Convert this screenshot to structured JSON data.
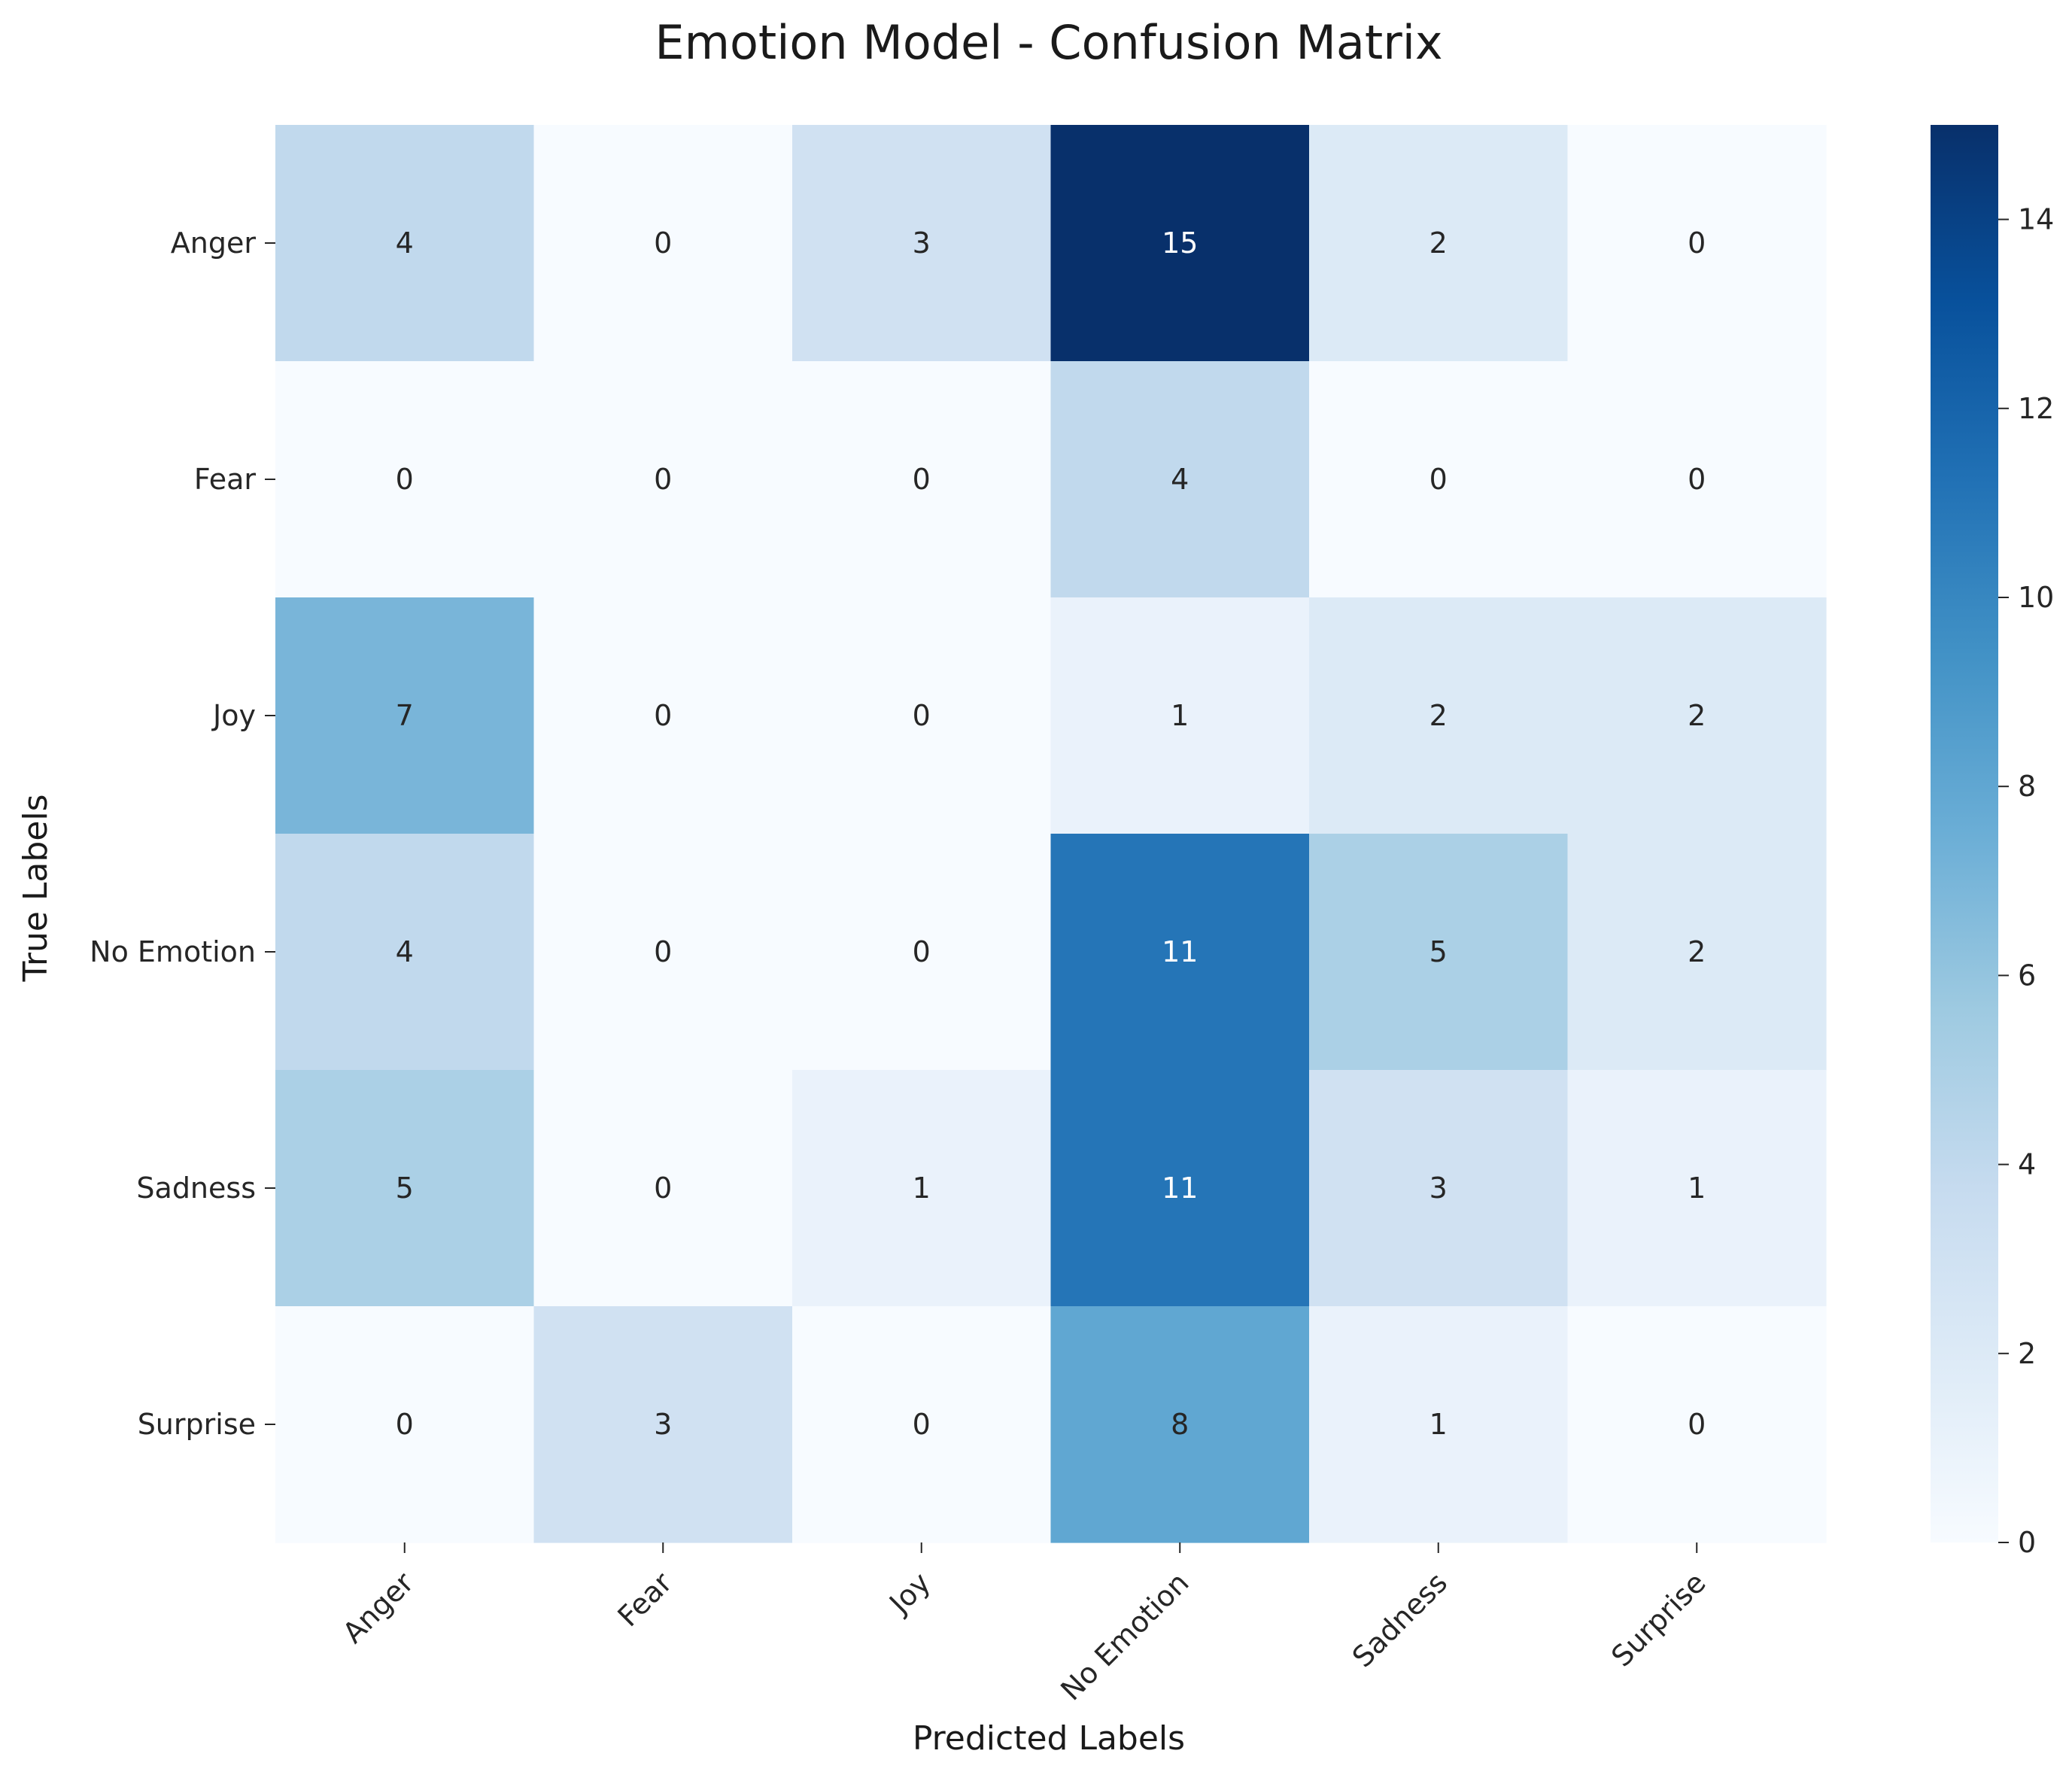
{
  "chart_data": {
    "type": "heatmap",
    "title": "Emotion Model - Confusion Matrix",
    "xlabel": "Predicted Labels",
    "ylabel": "True Labels",
    "x_categories": [
      "Anger",
      "Fear",
      "Joy",
      "No Emotion",
      "Sadness",
      "Surprise"
    ],
    "y_categories": [
      "Anger",
      "Fear",
      "Joy",
      "No Emotion",
      "Sadness",
      "Surprise"
    ],
    "values": [
      [
        4,
        0,
        3,
        15,
        2,
        0
      ],
      [
        0,
        0,
        0,
        4,
        0,
        0
      ],
      [
        7,
        0,
        0,
        1,
        2,
        2
      ],
      [
        4,
        0,
        0,
        11,
        5,
        2
      ],
      [
        5,
        0,
        1,
        11,
        3,
        1
      ],
      [
        0,
        3,
        0,
        8,
        1,
        0
      ]
    ],
    "colormap": "Blues",
    "vmin": 0,
    "vmax": 15,
    "colorbar_ticks": [
      0,
      2,
      4,
      6,
      8,
      10,
      12,
      14
    ],
    "annotations": true,
    "grid": false
  }
}
